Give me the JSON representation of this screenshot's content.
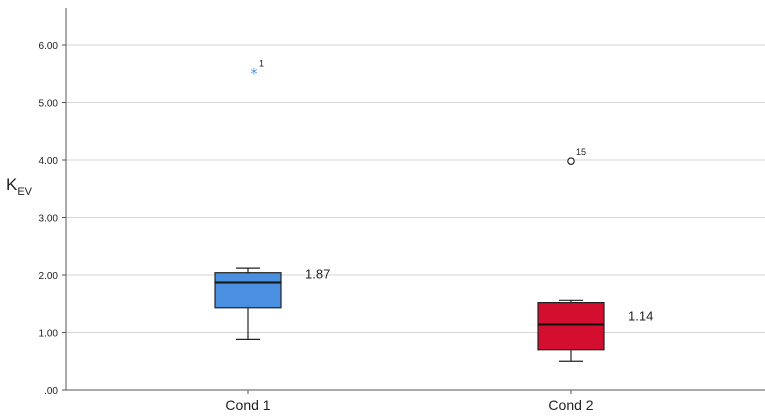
{
  "chart_data": {
    "type": "box",
    "ylabel": "K",
    "ylabel_subscript": "EV",
    "xlabel": "",
    "title": "",
    "ylim": [
      0,
      6.5
    ],
    "yticks": [
      0,
      1,
      2,
      3,
      4,
      5,
      6
    ],
    "ytick_labels": [
      ".00",
      "1.00",
      "2.00",
      "3.00",
      "4.00",
      "5.00",
      "6.00"
    ],
    "grid": "horizontal",
    "categories": [
      "Cond 1",
      "Cond 2"
    ],
    "boxes": [
      {
        "category": "Cond 1",
        "color": "#4a8fe0",
        "whisker_low": 0.88,
        "q1": 1.43,
        "median": 1.87,
        "q3": 2.04,
        "whisker_high": 2.12,
        "median_label": "1.87",
        "outliers": [
          {
            "value": 5.52,
            "label": "1",
            "marker": "star",
            "color": "#4a8fe0"
          }
        ]
      },
      {
        "category": "Cond 2",
        "color": "#d40e2e",
        "whisker_low": 0.5,
        "q1": 0.7,
        "median": 1.14,
        "q3": 1.52,
        "whisker_high": 1.56,
        "median_label": "1.14",
        "outliers": [
          {
            "value": 3.98,
            "label": "15",
            "marker": "circle",
            "color": "#222222"
          }
        ]
      }
    ]
  }
}
